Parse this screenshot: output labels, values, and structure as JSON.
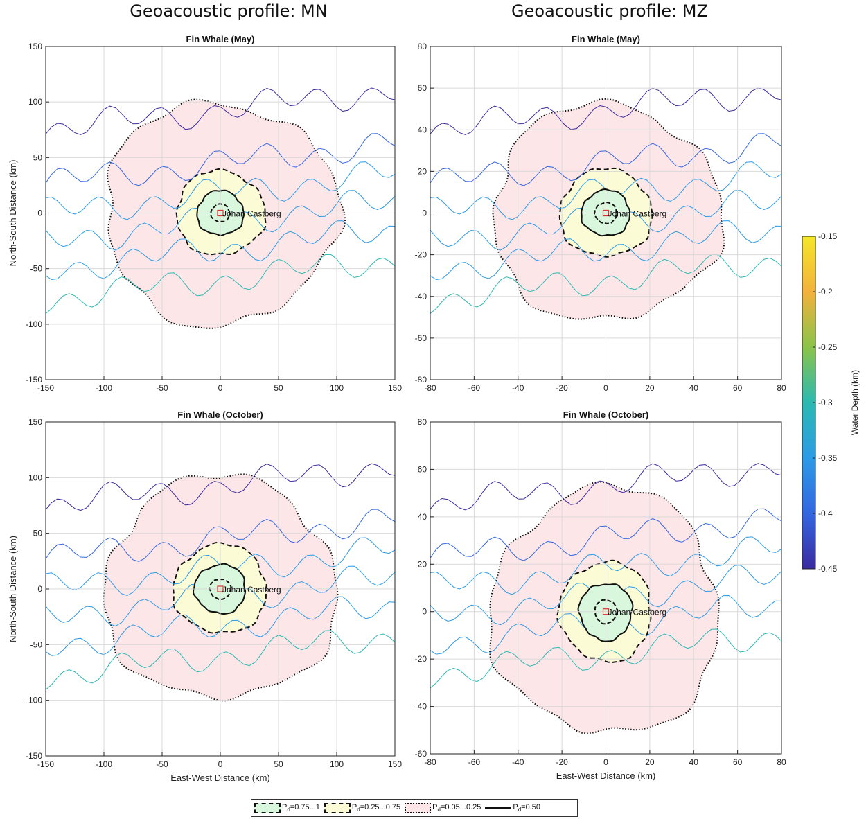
{
  "column_titles": [
    "Geoacoustic profile: MN",
    "Geoacoustic profile: MZ"
  ],
  "colorbar": {
    "label": "Water Depth (km)",
    "range": [
      -0.45,
      -0.15
    ],
    "ticks": [
      "-0.15",
      "-0.2",
      "-0.25",
      "-0.3",
      "-0.35",
      "-0.4",
      "-0.45"
    ],
    "colors": [
      "#f5e62a",
      "#f2b23c",
      "#8bc34a",
      "#2bb9b2",
      "#2c9be6",
      "#3366e0",
      "#3b2aa0"
    ]
  },
  "legend": {
    "high_prefix": "P",
    "high_sub": "d",
    "high_range": "=0.75...1",
    "mid_prefix": "P",
    "mid_sub": "d",
    "mid_range": "=0.25...0.75",
    "low_prefix": "P",
    "low_sub": "d",
    "low_range": "=0.05...0.25",
    "line_prefix": "P",
    "line_sub": "d",
    "line_value": "=0.50"
  },
  "marker_label": "Johan Castberg",
  "chart_data": [
    {
      "type": "contour",
      "title": "Fin Whale (May)",
      "xlabel": "",
      "ylabel": "North-South Distance (km)",
      "xlim": [
        -150,
        150
      ],
      "ylim": [
        -150,
        150
      ],
      "xticks": [
        -150,
        -100,
        -50,
        0,
        50,
        100,
        150
      ],
      "yticks": [
        -150,
        -100,
        -50,
        0,
        50,
        100,
        150
      ],
      "grid": true,
      "detection_radii_km": {
        "pd_high": 8,
        "pd_050_inner": 20,
        "pd_mid": 38,
        "pd_low": 100
      }
    },
    {
      "type": "contour",
      "title": "Fin Whale (May)",
      "xlabel": "",
      "ylabel": "",
      "xlim": [
        -80,
        80
      ],
      "ylim": [
        -80,
        80
      ],
      "xticks": [
        -80,
        -60,
        -40,
        -20,
        0,
        20,
        40,
        60,
        80
      ],
      "yticks": [
        -80,
        -60,
        -40,
        -20,
        0,
        20,
        40,
        60,
        80
      ],
      "grid": true,
      "detection_radii_km": {
        "pd_high": 5,
        "pd_050_inner": 11,
        "pd_mid": 21,
        "pd_low": 52
      }
    },
    {
      "type": "contour",
      "title": "Fin Whale (October)",
      "xlabel": "East-West Distance (km)",
      "ylabel": "North-South Distance (km)",
      "xlim": [
        -150,
        150
      ],
      "ylim": [
        -150,
        150
      ],
      "xticks": [
        -150,
        -100,
        -50,
        0,
        50,
        100,
        150
      ],
      "yticks": [
        -150,
        -100,
        -50,
        0,
        50,
        100,
        150
      ],
      "grid": true,
      "detection_radii_km": {
        "pd_high": 9,
        "pd_050_inner": 22,
        "pd_mid": 40,
        "pd_low": 100
      }
    },
    {
      "type": "contour",
      "title": "Fin Whale (October)",
      "xlabel": "East-West Distance (km)",
      "ylabel": "",
      "xlim": [
        -80,
        80
      ],
      "ylim": [
        -60,
        80
      ],
      "xticks": [
        -80,
        -60,
        -40,
        -20,
        0,
        20,
        40,
        60,
        80
      ],
      "yticks": [
        -60,
        -40,
        -20,
        0,
        20,
        40,
        60,
        80
      ],
      "grid": true,
      "detection_radii_km": {
        "pd_high": 5,
        "pd_050_inner": 12,
        "pd_mid": 21,
        "pd_low": 52
      }
    }
  ]
}
